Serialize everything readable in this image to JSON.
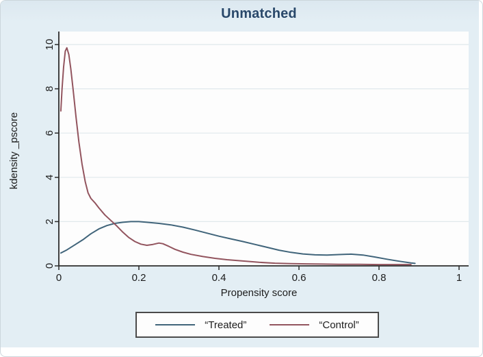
{
  "figure": {
    "background_color": "#e3eef4",
    "plot_background_color": "#fdfdfd",
    "gridline_color": "#e0e8ec",
    "axis_color": "#2b2b2b",
    "title_color": "#29486a",
    "legend_border_color": "#4a4a4a"
  },
  "chart_data": {
    "type": "line",
    "title": "Unmatched",
    "xlabel": "Propensity score",
    "ylabel": "kdensity _pscore",
    "xlim": [
      0,
      1
    ],
    "ylim": [
      0,
      10
    ],
    "xticks": [
      0,
      0.2,
      0.4,
      0.6,
      0.8,
      1
    ],
    "xtick_labels": [
      "0",
      "0.2",
      "0.4",
      "0.6",
      "0.8",
      "1"
    ],
    "yticks": [
      0,
      2,
      4,
      6,
      8,
      10
    ],
    "ytick_labels": [
      "0",
      "2",
      "4",
      "6",
      "8",
      "10"
    ],
    "grid": "horizontal-only",
    "legend_position": "bottom-center",
    "series": [
      {
        "name": "Treated",
        "legend_label": "“Treated”",
        "color": "#40647a",
        "points": [
          [
            0.005,
            0.58
          ],
          [
            0.02,
            0.72
          ],
          [
            0.04,
            0.95
          ],
          [
            0.06,
            1.18
          ],
          [
            0.08,
            1.45
          ],
          [
            0.1,
            1.67
          ],
          [
            0.12,
            1.82
          ],
          [
            0.14,
            1.92
          ],
          [
            0.16,
            1.97
          ],
          [
            0.18,
            2.0
          ],
          [
            0.2,
            2.0
          ],
          [
            0.22,
            1.97
          ],
          [
            0.25,
            1.92
          ],
          [
            0.28,
            1.85
          ],
          [
            0.31,
            1.75
          ],
          [
            0.34,
            1.62
          ],
          [
            0.37,
            1.48
          ],
          [
            0.4,
            1.34
          ],
          [
            0.43,
            1.22
          ],
          [
            0.46,
            1.1
          ],
          [
            0.49,
            0.97
          ],
          [
            0.52,
            0.84
          ],
          [
            0.55,
            0.71
          ],
          [
            0.58,
            0.61
          ],
          [
            0.61,
            0.54
          ],
          [
            0.64,
            0.5
          ],
          [
            0.67,
            0.49
          ],
          [
            0.7,
            0.51
          ],
          [
            0.73,
            0.53
          ],
          [
            0.76,
            0.49
          ],
          [
            0.79,
            0.4
          ],
          [
            0.82,
            0.3
          ],
          [
            0.85,
            0.21
          ],
          [
            0.88,
            0.13
          ],
          [
            0.89,
            0.11
          ]
        ]
      },
      {
        "name": "Control",
        "legend_label": "“Control”",
        "color": "#92545e",
        "points": [
          [
            0.005,
            7.0
          ],
          [
            0.008,
            8.0
          ],
          [
            0.012,
            9.0
          ],
          [
            0.016,
            9.7
          ],
          [
            0.02,
            9.85
          ],
          [
            0.025,
            9.55
          ],
          [
            0.03,
            8.9
          ],
          [
            0.036,
            7.9
          ],
          [
            0.043,
            6.7
          ],
          [
            0.05,
            5.6
          ],
          [
            0.058,
            4.6
          ],
          [
            0.066,
            3.8
          ],
          [
            0.073,
            3.3
          ],
          [
            0.08,
            3.05
          ],
          [
            0.09,
            2.85
          ],
          [
            0.1,
            2.62
          ],
          [
            0.115,
            2.3
          ],
          [
            0.13,
            2.05
          ],
          [
            0.145,
            1.8
          ],
          [
            0.16,
            1.52
          ],
          [
            0.175,
            1.28
          ],
          [
            0.19,
            1.1
          ],
          [
            0.205,
            0.98
          ],
          [
            0.22,
            0.93
          ],
          [
            0.235,
            0.97
          ],
          [
            0.25,
            1.03
          ],
          [
            0.26,
            1.0
          ],
          [
            0.275,
            0.88
          ],
          [
            0.29,
            0.75
          ],
          [
            0.31,
            0.62
          ],
          [
            0.33,
            0.52
          ],
          [
            0.36,
            0.42
          ],
          [
            0.39,
            0.34
          ],
          [
            0.42,
            0.28
          ],
          [
            0.46,
            0.22
          ],
          [
            0.5,
            0.16
          ],
          [
            0.54,
            0.12
          ],
          [
            0.58,
            0.1
          ],
          [
            0.62,
            0.09
          ],
          [
            0.66,
            0.08
          ],
          [
            0.7,
            0.07
          ],
          [
            0.75,
            0.07
          ],
          [
            0.8,
            0.06
          ],
          [
            0.85,
            0.06
          ],
          [
            0.88,
            0.06
          ]
        ]
      }
    ]
  }
}
